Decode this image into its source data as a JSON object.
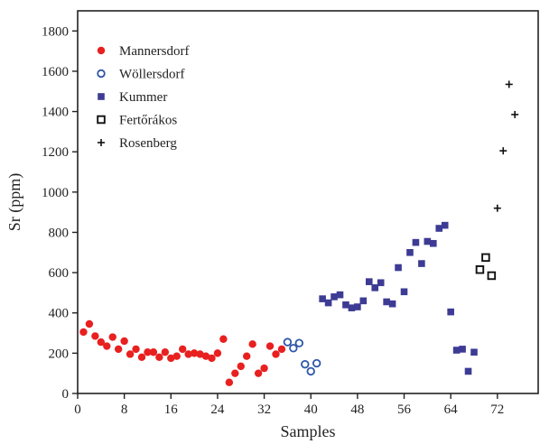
{
  "chart_data": {
    "type": "scatter",
    "xlabel": "Samples",
    "ylabel": "Sr (ppm)",
    "xlim": [
      0,
      79
    ],
    "ylim": [
      0,
      1900
    ],
    "xticks": [
      0,
      8,
      16,
      24,
      32,
      40,
      48,
      56,
      64,
      72
    ],
    "yticks": [
      0,
      200,
      400,
      600,
      800,
      1000,
      1200,
      1400,
      1600,
      1800
    ],
    "grid": false,
    "legend_position": "top-left",
    "series": [
      {
        "name": "Mannersdorf",
        "marker": "filled-circle",
        "color": "#e8201f",
        "points": [
          [
            1,
            305
          ],
          [
            2,
            345
          ],
          [
            3,
            285
          ],
          [
            4,
            255
          ],
          [
            5,
            235
          ],
          [
            6,
            280
          ],
          [
            7,
            220
          ],
          [
            8,
            260
          ],
          [
            9,
            195
          ],
          [
            10,
            220
          ],
          [
            11,
            180
          ],
          [
            12,
            205
          ],
          [
            13,
            205
          ],
          [
            14,
            180
          ],
          [
            15,
            205
          ],
          [
            16,
            175
          ],
          [
            17,
            185
          ],
          [
            18,
            220
          ],
          [
            19,
            195
          ],
          [
            20,
            200
          ],
          [
            21,
            195
          ],
          [
            22,
            185
          ],
          [
            23,
            175
          ],
          [
            24,
            200
          ],
          [
            25,
            270
          ],
          [
            26,
            55
          ],
          [
            27,
            100
          ],
          [
            28,
            135
          ],
          [
            29,
            185
          ],
          [
            30,
            245
          ],
          [
            31,
            100
          ],
          [
            32,
            125
          ],
          [
            33,
            235
          ],
          [
            34,
            195
          ],
          [
            35,
            220
          ]
        ]
      },
      {
        "name": "Wöllersdorf",
        "marker": "open-circle",
        "color": "#2e57a8",
        "points": [
          [
            36,
            255
          ],
          [
            37,
            225
          ],
          [
            38,
            250
          ],
          [
            39,
            145
          ],
          [
            40,
            110
          ],
          [
            41,
            150
          ]
        ]
      },
      {
        "name": "Kummer",
        "marker": "filled-square",
        "color": "#3d3b94",
        "points": [
          [
            42,
            470
          ],
          [
            43,
            450
          ],
          [
            44,
            480
          ],
          [
            45,
            490
          ],
          [
            46,
            440
          ],
          [
            47,
            425
          ],
          [
            48,
            430
          ],
          [
            49,
            460
          ],
          [
            50,
            555
          ],
          [
            51,
            525
          ],
          [
            52,
            550
          ],
          [
            53,
            455
          ],
          [
            54,
            445
          ],
          [
            55,
            625
          ],
          [
            56,
            505
          ],
          [
            57,
            700
          ],
          [
            58,
            750
          ],
          [
            59,
            645
          ],
          [
            60,
            755
          ],
          [
            61,
            745
          ],
          [
            62,
            820
          ],
          [
            63,
            835
          ],
          [
            64,
            405
          ],
          [
            65,
            215
          ],
          [
            66,
            220
          ],
          [
            67,
            110
          ],
          [
            68,
            205
          ]
        ]
      },
      {
        "name": "Fertőrákos",
        "marker": "open-square",
        "color": "#111111",
        "points": [
          [
            69,
            615
          ],
          [
            70,
            675
          ],
          [
            71,
            585
          ]
        ]
      },
      {
        "name": "Rosenberg",
        "marker": "plus",
        "color": "#111111",
        "points": [
          [
            72,
            920
          ],
          [
            73,
            1205
          ],
          [
            74,
            1535
          ],
          [
            75,
            1385
          ]
        ]
      }
    ]
  }
}
